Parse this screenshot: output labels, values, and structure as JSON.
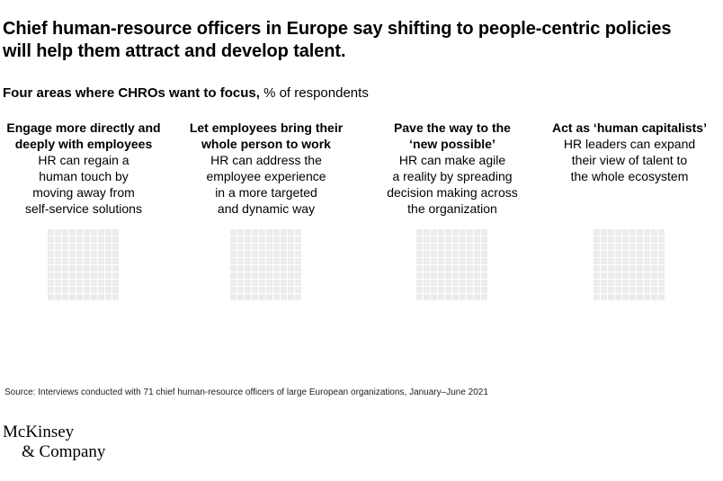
{
  "chart_data": {
    "type": "waffle",
    "title_line1": "Chief human-resource officers in Europe say shifting to people-centric policies",
    "title_line2": "will help them attract and develop talent.",
    "subtitle_bold": "Four areas where CHROs want to focus,",
    "subtitle_rest": " % of respondents",
    "grid_color": "#ececec",
    "categories": [
      {
        "head_line1": "Engage more directly and",
        "head_line2": "deeply with employees",
        "desc_lines": [
          "HR can regain a",
          "human touch by",
          "moving away from",
          "self-service solutions"
        ]
      },
      {
        "head_line1": "Let employees bring their",
        "head_line2": "whole person to work",
        "desc_lines": [
          "HR can address the",
          "employee experience",
          "in a more targeted",
          "and dynamic way"
        ]
      },
      {
        "head_line1": "Pave the way to the",
        "head_line2": "‘new possible’",
        "desc_lines": [
          "HR can make agile",
          "a reality by spreading",
          "decision making across",
          "the organization"
        ]
      },
      {
        "head_line1": "Act as ‘human capitalists’",
        "head_line2": "",
        "desc_lines": [
          "HR leaders can expand",
          "their view of talent to",
          "the whole ecosystem"
        ]
      }
    ]
  },
  "source": "Source: Interviews conducted with 71 chief human-resource officers of large European organizations, January–June 2021",
  "logo": {
    "line1": "McKinsey",
    "line2": "& Company"
  }
}
